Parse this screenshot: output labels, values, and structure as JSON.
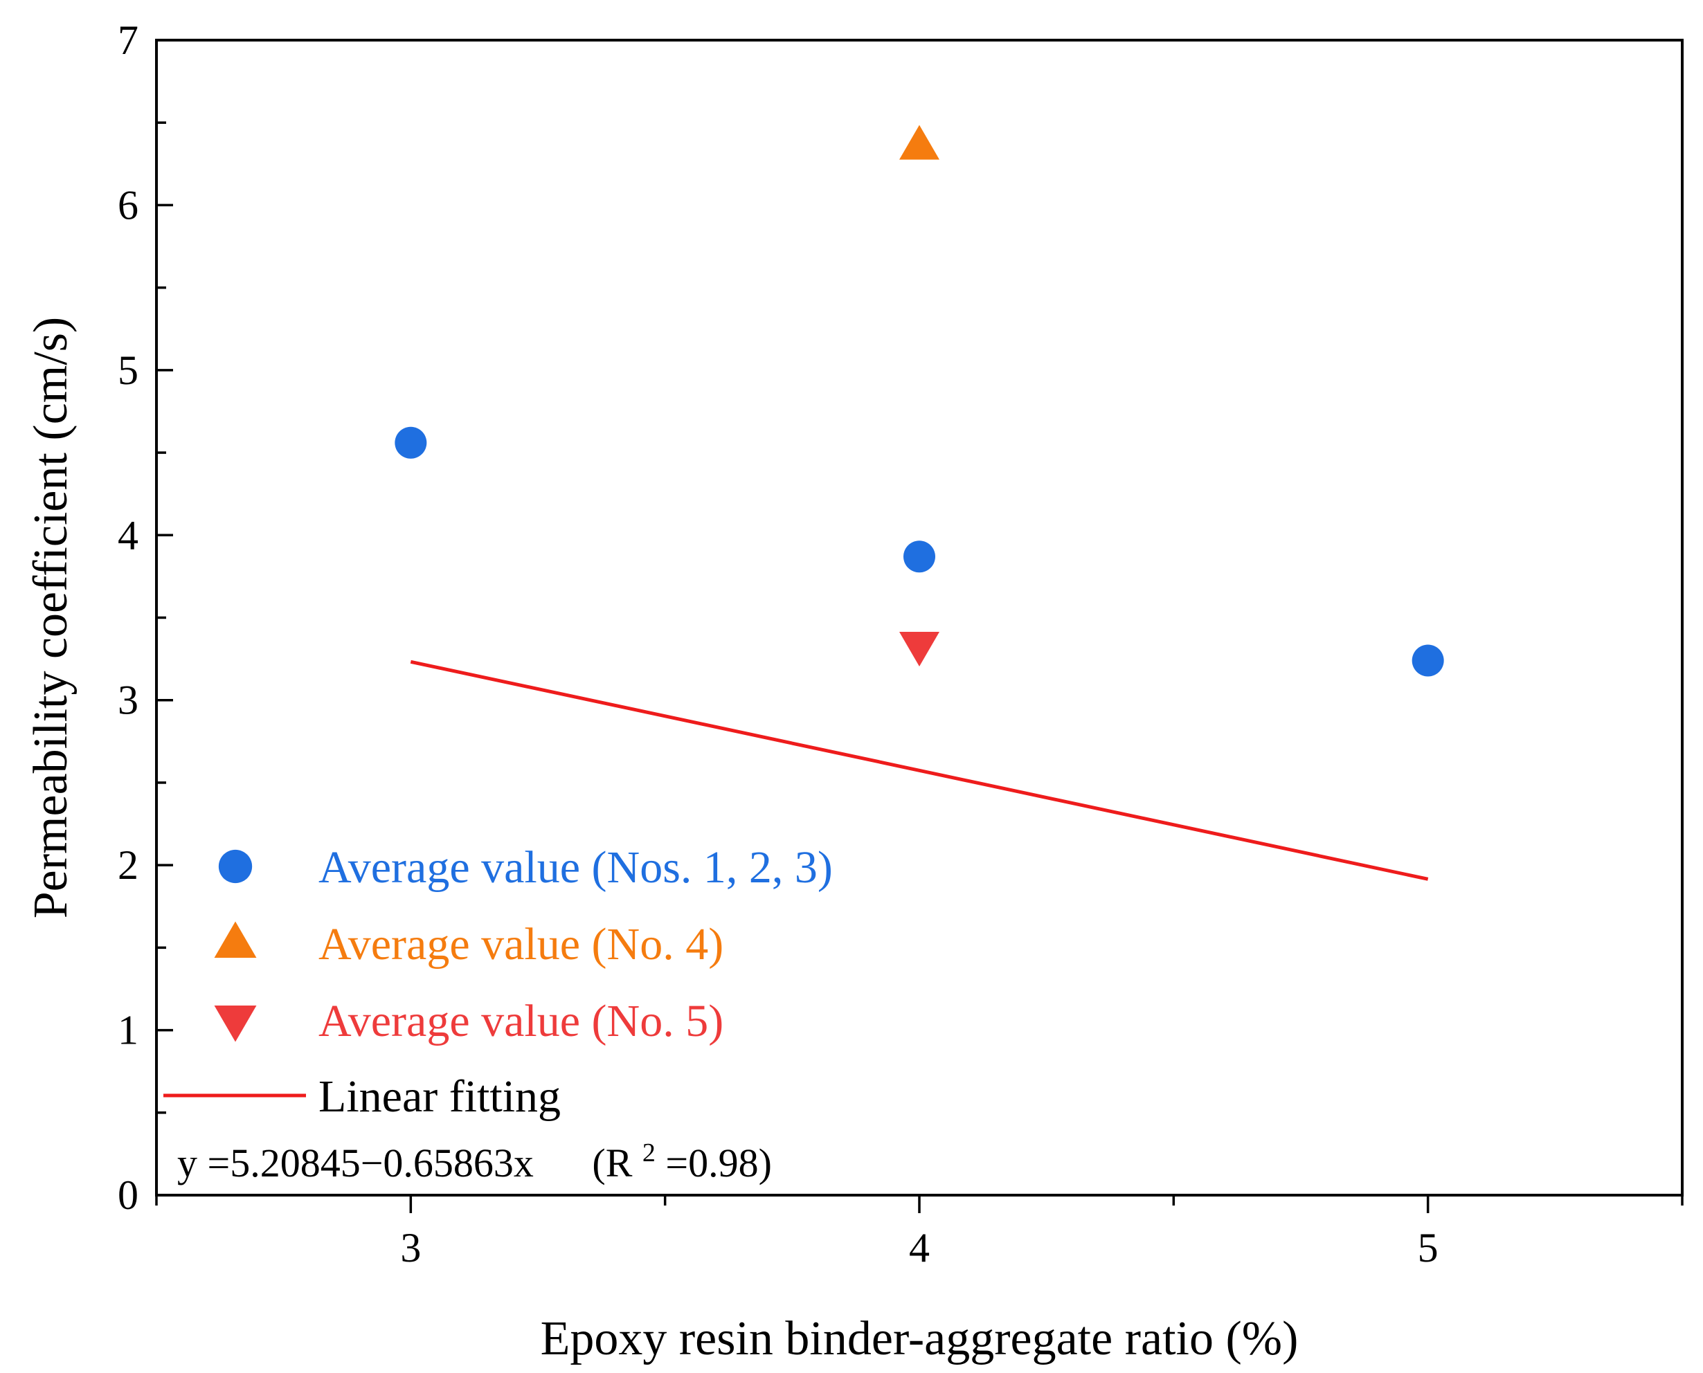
{
  "chart_data": {
    "type": "scatter",
    "xlabel": "Epoxy resin binder-aggregate ratio (%)",
    "ylabel": "Permeability coefficient (cm/s)",
    "xlim": [
      2.5,
      5.5
    ],
    "ylim": [
      0,
      7
    ],
    "xticks": [
      3,
      4,
      5
    ],
    "yticks": [
      0,
      1,
      2,
      3,
      4,
      5,
      6,
      7
    ],
    "grid": false,
    "legend_position": "bottom-left",
    "series": [
      {
        "name": "Average value (Nos. 1, 2, 3)",
        "marker": "circle",
        "color": "#1f6fe0",
        "x": [
          3,
          4,
          5
        ],
        "y": [
          4.56,
          3.87,
          3.24
        ]
      },
      {
        "name": "Average value (No. 4)",
        "marker": "triangle-up",
        "color": "#f57c0f",
        "x": [
          4
        ],
        "y": [
          6.36
        ]
      },
      {
        "name": "Average value (No. 5)",
        "marker": "triangle-down",
        "color": "#ee3b3b",
        "x": [
          4
        ],
        "y": [
          3.33
        ]
      }
    ],
    "fit": {
      "name": "Linear fitting",
      "color": "#ee1c1c",
      "intercept": 5.20845,
      "slope": -0.65863,
      "x_range": [
        3,
        5
      ],
      "equation_lhs": "y =5.20845−0.65863x",
      "r2_prefix": "(R",
      "r2_sup": "2",
      "r2_suffix": "=0.98)"
    }
  }
}
